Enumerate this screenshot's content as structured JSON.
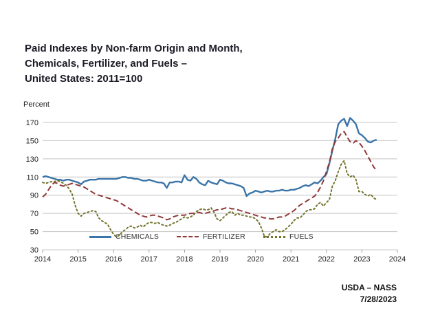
{
  "title": {
    "line1": "Paid Indexes by Non-farm Origin and Month,",
    "line2": "Chemicals, Fertilizer, and Fuels –",
    "line3": "United States: 2011=100"
  },
  "footer": {
    "source": "USDA – NASS",
    "date": "7/28/2023"
  },
  "chart_data": {
    "type": "line",
    "title": "Paid Indexes by Non-farm Origin and Month, Chemicals, Fertilizer, and Fuels – United States: 2011=100",
    "ylabel": "Percent",
    "xlabel": "",
    "xlim": [
      2014,
      2024
    ],
    "ylim": [
      30,
      170
    ],
    "y_ticks": [
      30,
      50,
      70,
      90,
      110,
      130,
      150,
      170
    ],
    "x_ticks": [
      2014,
      2015,
      2016,
      2017,
      2018,
      2019,
      2020,
      2021,
      2022,
      2023,
      2024
    ],
    "grid": "horizontal",
    "legend_position": "bottom-inside",
    "x_start": 2014.0,
    "x_step": 0.0833333,
    "frequency": "monthly",
    "series": [
      {
        "name": "CHEMICALS",
        "color": "#3a74a8",
        "style": "solid",
        "values": [
          110,
          111,
          110,
          109,
          108,
          107,
          107,
          106,
          107,
          107,
          106,
          105,
          104,
          102,
          105,
          106,
          107,
          107,
          107,
          108,
          108,
          108,
          108,
          108,
          108,
          108,
          109,
          110,
          110,
          109,
          109,
          108,
          108,
          107,
          106,
          106,
          107,
          106,
          105,
          104,
          104,
          103,
          98,
          104,
          104,
          105,
          105,
          104,
          112,
          107,
          106,
          110,
          108,
          104,
          102,
          101,
          106,
          104,
          103,
          102,
          107,
          106,
          104,
          103,
          103,
          102,
          101,
          100,
          98,
          89,
          92,
          93,
          95,
          94,
          93,
          94,
          95,
          94,
          94,
          95,
          95,
          96,
          95,
          95,
          96,
          96,
          97,
          98,
          100,
          101,
          100,
          102,
          104,
          103,
          106,
          110,
          113,
          125,
          139,
          152,
          168,
          172,
          174,
          166,
          175,
          172,
          168,
          158,
          156,
          153,
          149,
          148,
          150,
          151
        ]
      },
      {
        "name": "FERTILIZER",
        "color": "#8f3838",
        "style": "dashed",
        "values": [
          88,
          91,
          96,
          101,
          104,
          103,
          101,
          100,
          101,
          102,
          103,
          102,
          101,
          100,
          99,
          97,
          95,
          93,
          91,
          90,
          89,
          88,
          87,
          86,
          85,
          84,
          82,
          80,
          78,
          76,
          74,
          72,
          70,
          68,
          67,
          66,
          67,
          68,
          68,
          67,
          66,
          65,
          63,
          64,
          66,
          67,
          68,
          68,
          68,
          69,
          70,
          70,
          71,
          71,
          70,
          70,
          71,
          72,
          73,
          74,
          74,
          75,
          76,
          76,
          75,
          75,
          74,
          73,
          72,
          71,
          70,
          69,
          68,
          67,
          66,
          65,
          65,
          64,
          64,
          65,
          66,
          66,
          67,
          69,
          71,
          73,
          76,
          79,
          81,
          83,
          85,
          87,
          89,
          93,
          99,
          106,
          116,
          126,
          141,
          149,
          153,
          158,
          160,
          154,
          149,
          147,
          150,
          148,
          144,
          139,
          133,
          127,
          121,
          117
        ]
      },
      {
        "name": "FUELS",
        "color": "#73732d",
        "style": "dotted",
        "values": [
          104,
          103,
          104,
          105,
          105,
          106,
          105,
          103,
          101,
          97,
          91,
          79,
          70,
          67,
          70,
          71,
          72,
          73,
          72,
          65,
          62,
          60,
          58,
          52,
          47,
          44,
          46,
          50,
          52,
          55,
          56,
          54,
          55,
          57,
          55,
          58,
          60,
          60,
          59,
          60,
          58,
          57,
          56,
          57,
          59,
          60,
          62,
          64,
          66,
          65,
          66,
          68,
          72,
          74,
          75,
          74,
          74,
          76,
          71,
          64,
          62,
          65,
          68,
          71,
          72,
          68,
          70,
          68,
          68,
          67,
          66,
          66,
          64,
          61,
          54,
          45,
          44,
          48,
          50,
          52,
          50,
          50,
          52,
          55,
          58,
          62,
          65,
          65,
          68,
          72,
          74,
          74,
          75,
          80,
          82,
          78,
          82,
          85,
          100,
          106,
          116,
          124,
          128,
          114,
          110,
          112,
          107,
          94,
          94,
          91,
          89,
          91,
          87,
          85
        ]
      }
    ]
  }
}
